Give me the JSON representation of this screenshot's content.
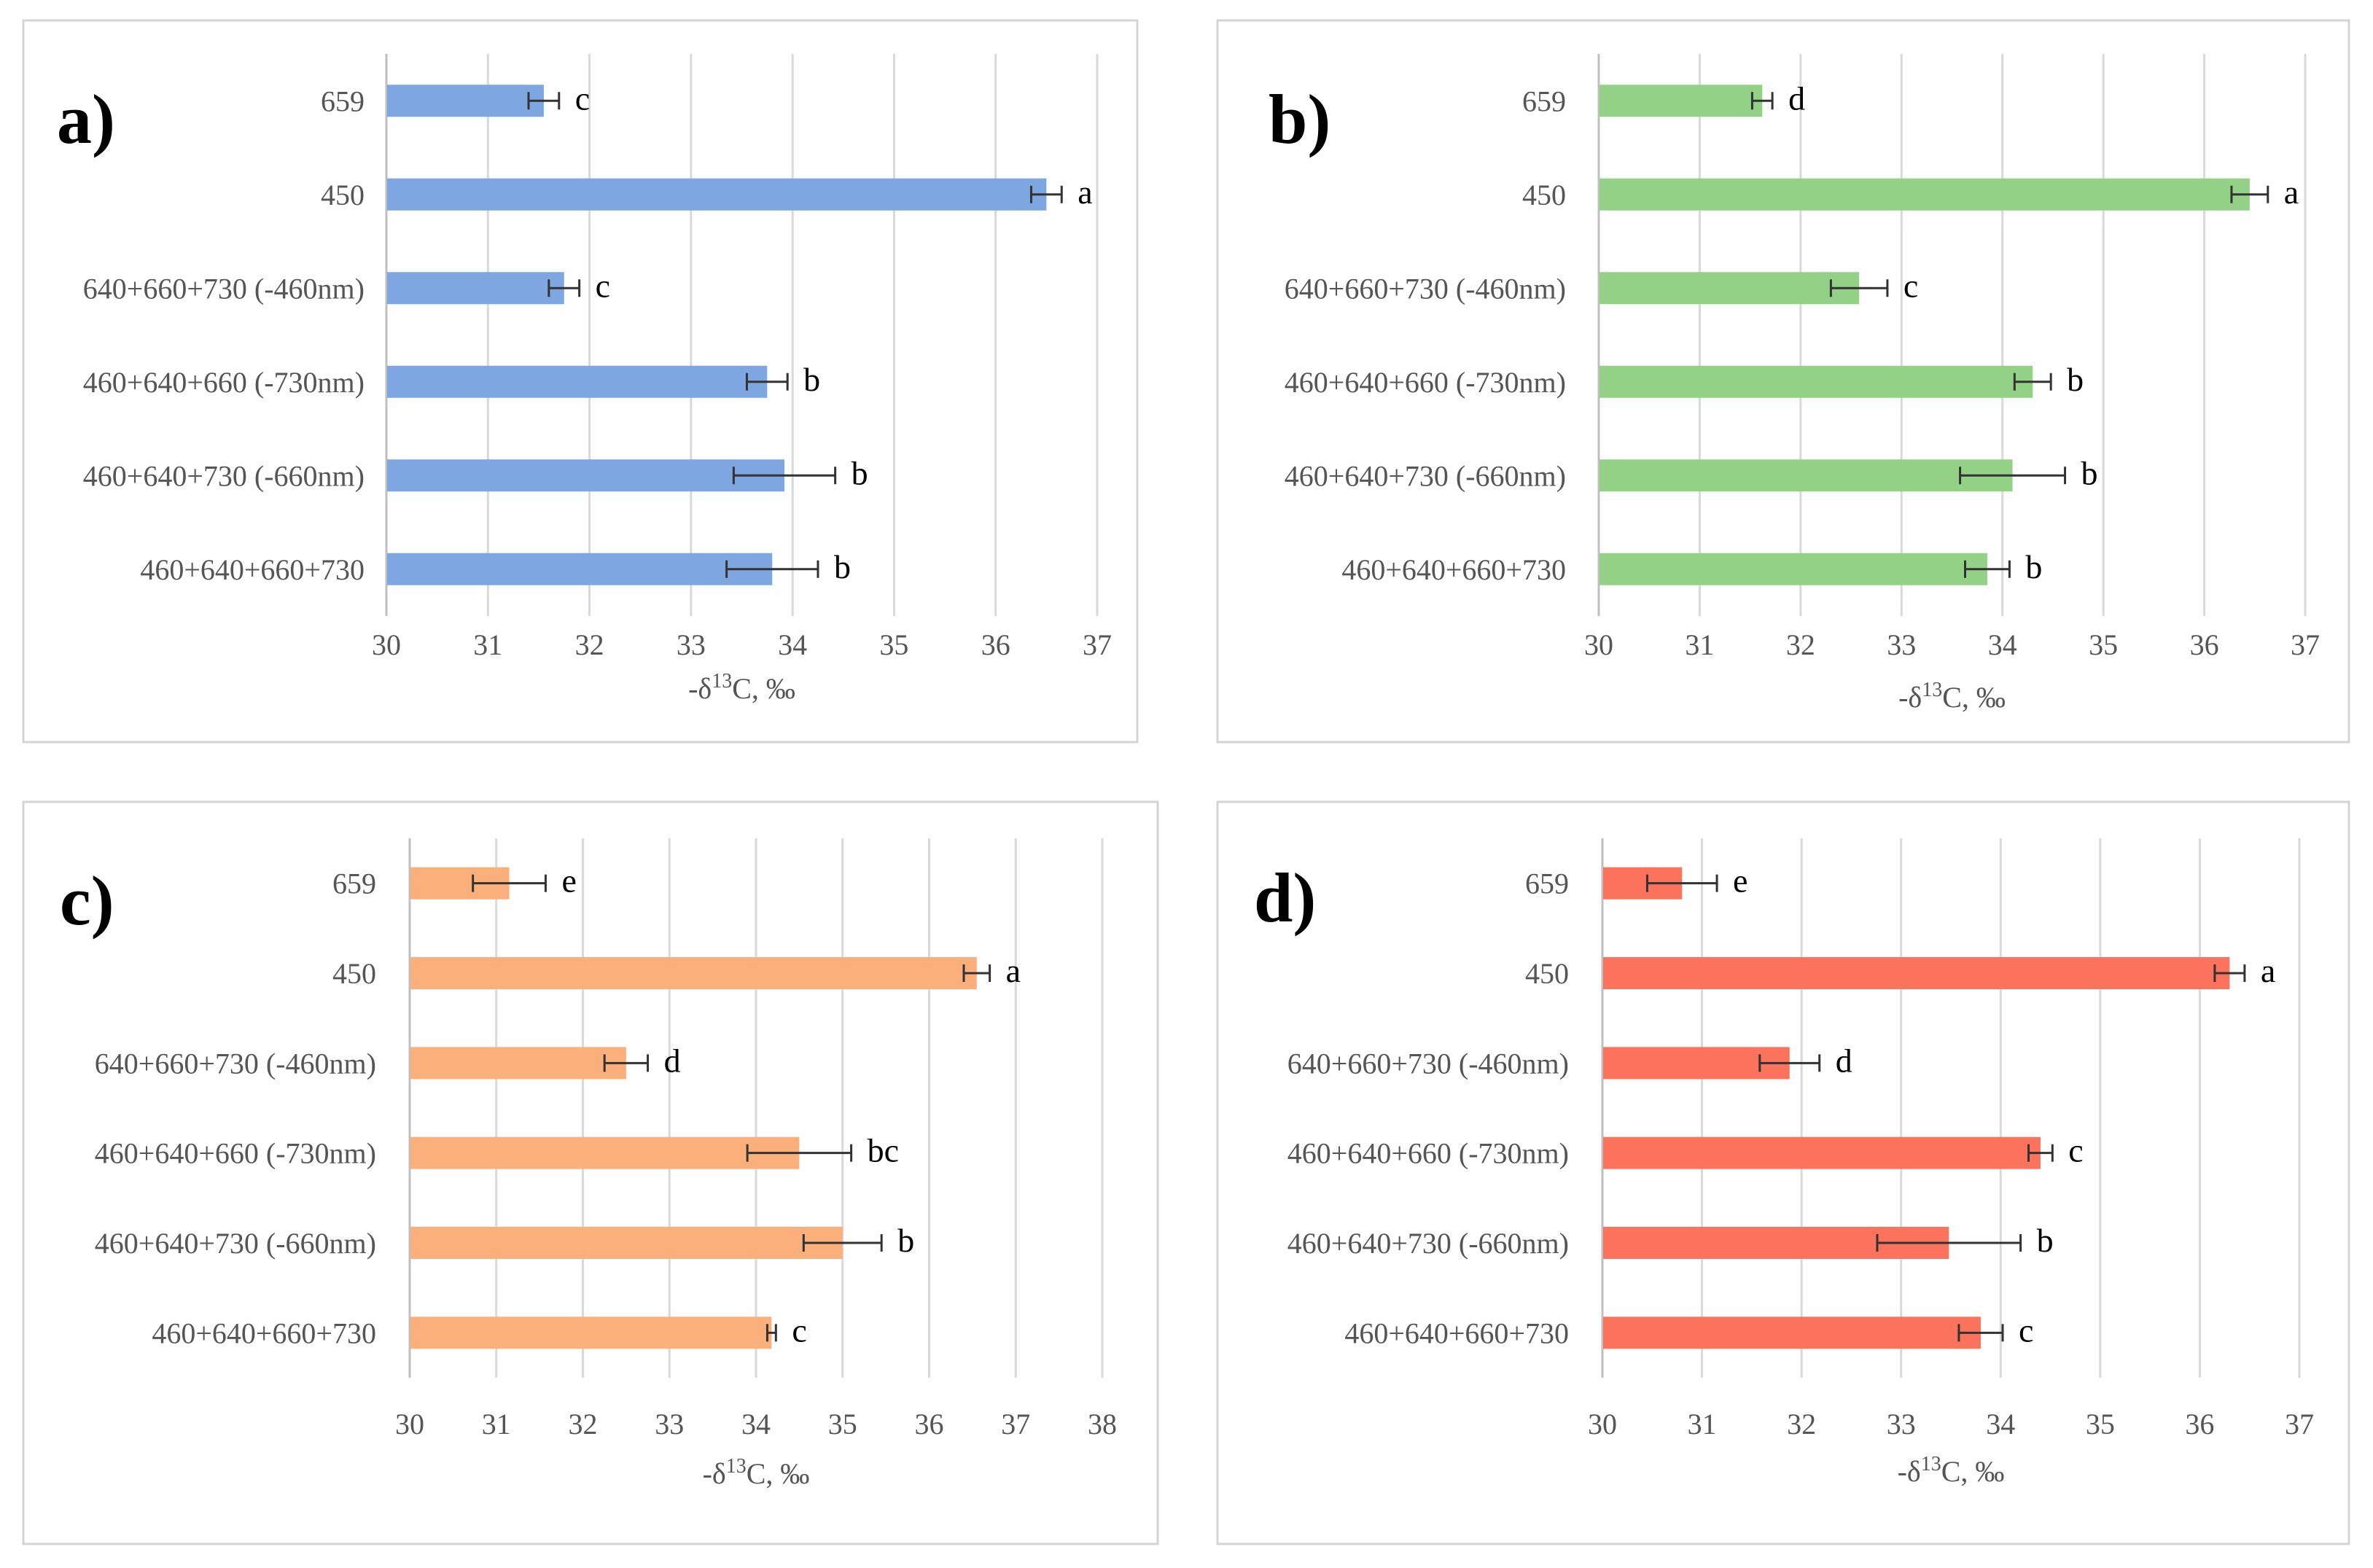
{
  "chart_data": [
    {
      "type": "bar",
      "orientation": "horizontal",
      "panel_label": "a)",
      "color": "#7ea6e0",
      "categories": [
        "659",
        "450",
        "640+660+730 (-460nm)",
        "460+640+660 (-730nm)",
        "460+640+730 (-660nm)",
        "460+640+660+730"
      ],
      "values": [
        31.55,
        36.5,
        31.75,
        33.75,
        33.92,
        33.8
      ],
      "errors": [
        0.15,
        0.15,
        0.15,
        0.2,
        0.5,
        0.45
      ],
      "letters": [
        "c",
        "a",
        "c",
        "b",
        "b",
        "b"
      ],
      "xlim": [
        30,
        37
      ],
      "xticks": [
        "30",
        "31",
        "32",
        "33",
        "34",
        "35",
        "36",
        "37"
      ],
      "xlabel_prefix": "-δ",
      "xlabel_sup": "13",
      "xlabel_suffix": "C, ‰",
      "grid": true
    },
    {
      "type": "bar",
      "orientation": "horizontal",
      "panel_label": "b)",
      "color": "#93d186",
      "categories": [
        "659",
        "450",
        "640+660+730 (-460nm)",
        "460+640+660 (-730nm)",
        "460+640+730 (-660nm)",
        "460+640+660+730"
      ],
      "values": [
        31.62,
        36.45,
        32.58,
        34.3,
        34.1,
        33.85
      ],
      "errors": [
        0.1,
        0.18,
        0.28,
        0.18,
        0.52,
        0.22
      ],
      "letters": [
        "d",
        "a",
        "c",
        "b",
        "b",
        "b"
      ],
      "xlim": [
        30,
        37
      ],
      "xticks": [
        "30",
        "31",
        "32",
        "33",
        "34",
        "35",
        "36",
        "37"
      ],
      "xlabel_prefix": "-δ",
      "xlabel_sup": "13",
      "xlabel_suffix": "C, ‰",
      "grid": true
    },
    {
      "type": "bar",
      "orientation": "horizontal",
      "panel_label": "c)",
      "color": "#fbb07c",
      "categories": [
        "659",
        "450",
        "640+660+730 (-460nm)",
        "460+640+660 (-730nm)",
        "460+640+730 (-660nm)",
        "460+640+660+730"
      ],
      "values": [
        31.15,
        36.55,
        32.5,
        34.5,
        35.0,
        34.18
      ],
      "errors": [
        0.42,
        0.15,
        0.25,
        0.6,
        0.45,
        0.05
      ],
      "letters": [
        "e",
        "a",
        "d",
        "bc",
        "b",
        "c"
      ],
      "xlim": [
        30,
        38
      ],
      "xticks": [
        "30",
        "31",
        "32",
        "33",
        "34",
        "35",
        "36",
        "37",
        "38"
      ],
      "xlabel_prefix": "-δ",
      "xlabel_sup": "13",
      "xlabel_suffix": "C, ‰",
      "grid": true
    },
    {
      "type": "bar",
      "orientation": "horizontal",
      "panel_label": "d)",
      "color": "#fb735d",
      "categories": [
        "659",
        "450",
        "640+660+730 (-460nm)",
        "460+640+660 (-730nm)",
        "460+640+730 (-660nm)",
        "460+640+660+730"
      ],
      "values": [
        30.8,
        36.3,
        31.88,
        34.4,
        33.48,
        33.8
      ],
      "errors": [
        0.35,
        0.15,
        0.3,
        0.12,
        0.72,
        0.22
      ],
      "letters": [
        "e",
        "a",
        "d",
        "c",
        "b",
        "c"
      ],
      "xlim": [
        30,
        37
      ],
      "xticks": [
        "30",
        "31",
        "32",
        "33",
        "34",
        "35",
        "36",
        "37"
      ],
      "xlabel_prefix": "-δ",
      "xlabel_sup": "13",
      "xlabel_suffix": "C, ‰",
      "grid": true
    }
  ]
}
